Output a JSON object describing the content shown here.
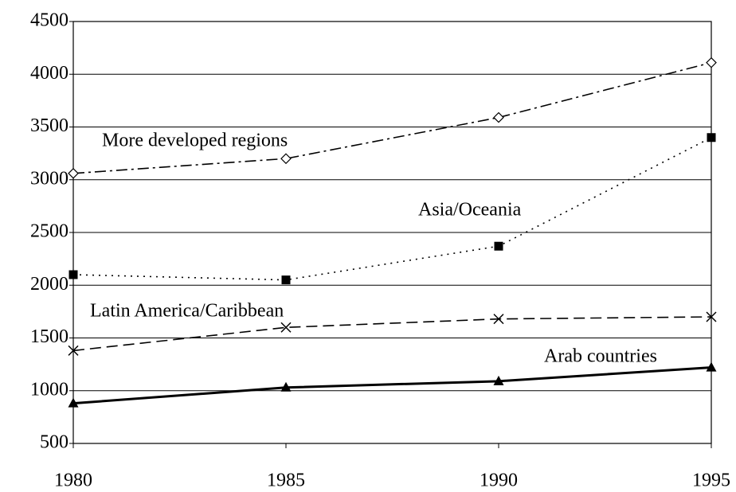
{
  "chart_data": {
    "type": "line",
    "x": [
      1980,
      1985,
      1990,
      1995
    ],
    "series": [
      {
        "name": "More developed regions",
        "color": "#000000",
        "dash": "dashdot",
        "marker": "diamond-open",
        "values": [
          3060,
          3200,
          3590,
          4110
        ]
      },
      {
        "name": "Asia/Oceania",
        "color": "#000000",
        "dash": "dotted",
        "marker": "square",
        "values": [
          2100,
          2050,
          2370,
          3400
        ]
      },
      {
        "name": "Latin America/Caribbean",
        "color": "#000000",
        "dash": "dashed",
        "marker": "x",
        "values": [
          1380,
          1600,
          1680,
          1700
        ]
      },
      {
        "name": "Arab countries",
        "color": "#000000",
        "dash": "solid",
        "marker": "triangle",
        "values": [
          880,
          1030,
          1090,
          1220
        ]
      }
    ],
    "xlim": [
      1980,
      1995
    ],
    "xticks": [
      1980,
      1985,
      1990,
      1995
    ],
    "ylim": [
      500,
      4500
    ],
    "yticks": [
      500,
      1000,
      1500,
      2000,
      2500,
      3000,
      3500,
      4000,
      4500
    ],
    "grid": true
  }
}
